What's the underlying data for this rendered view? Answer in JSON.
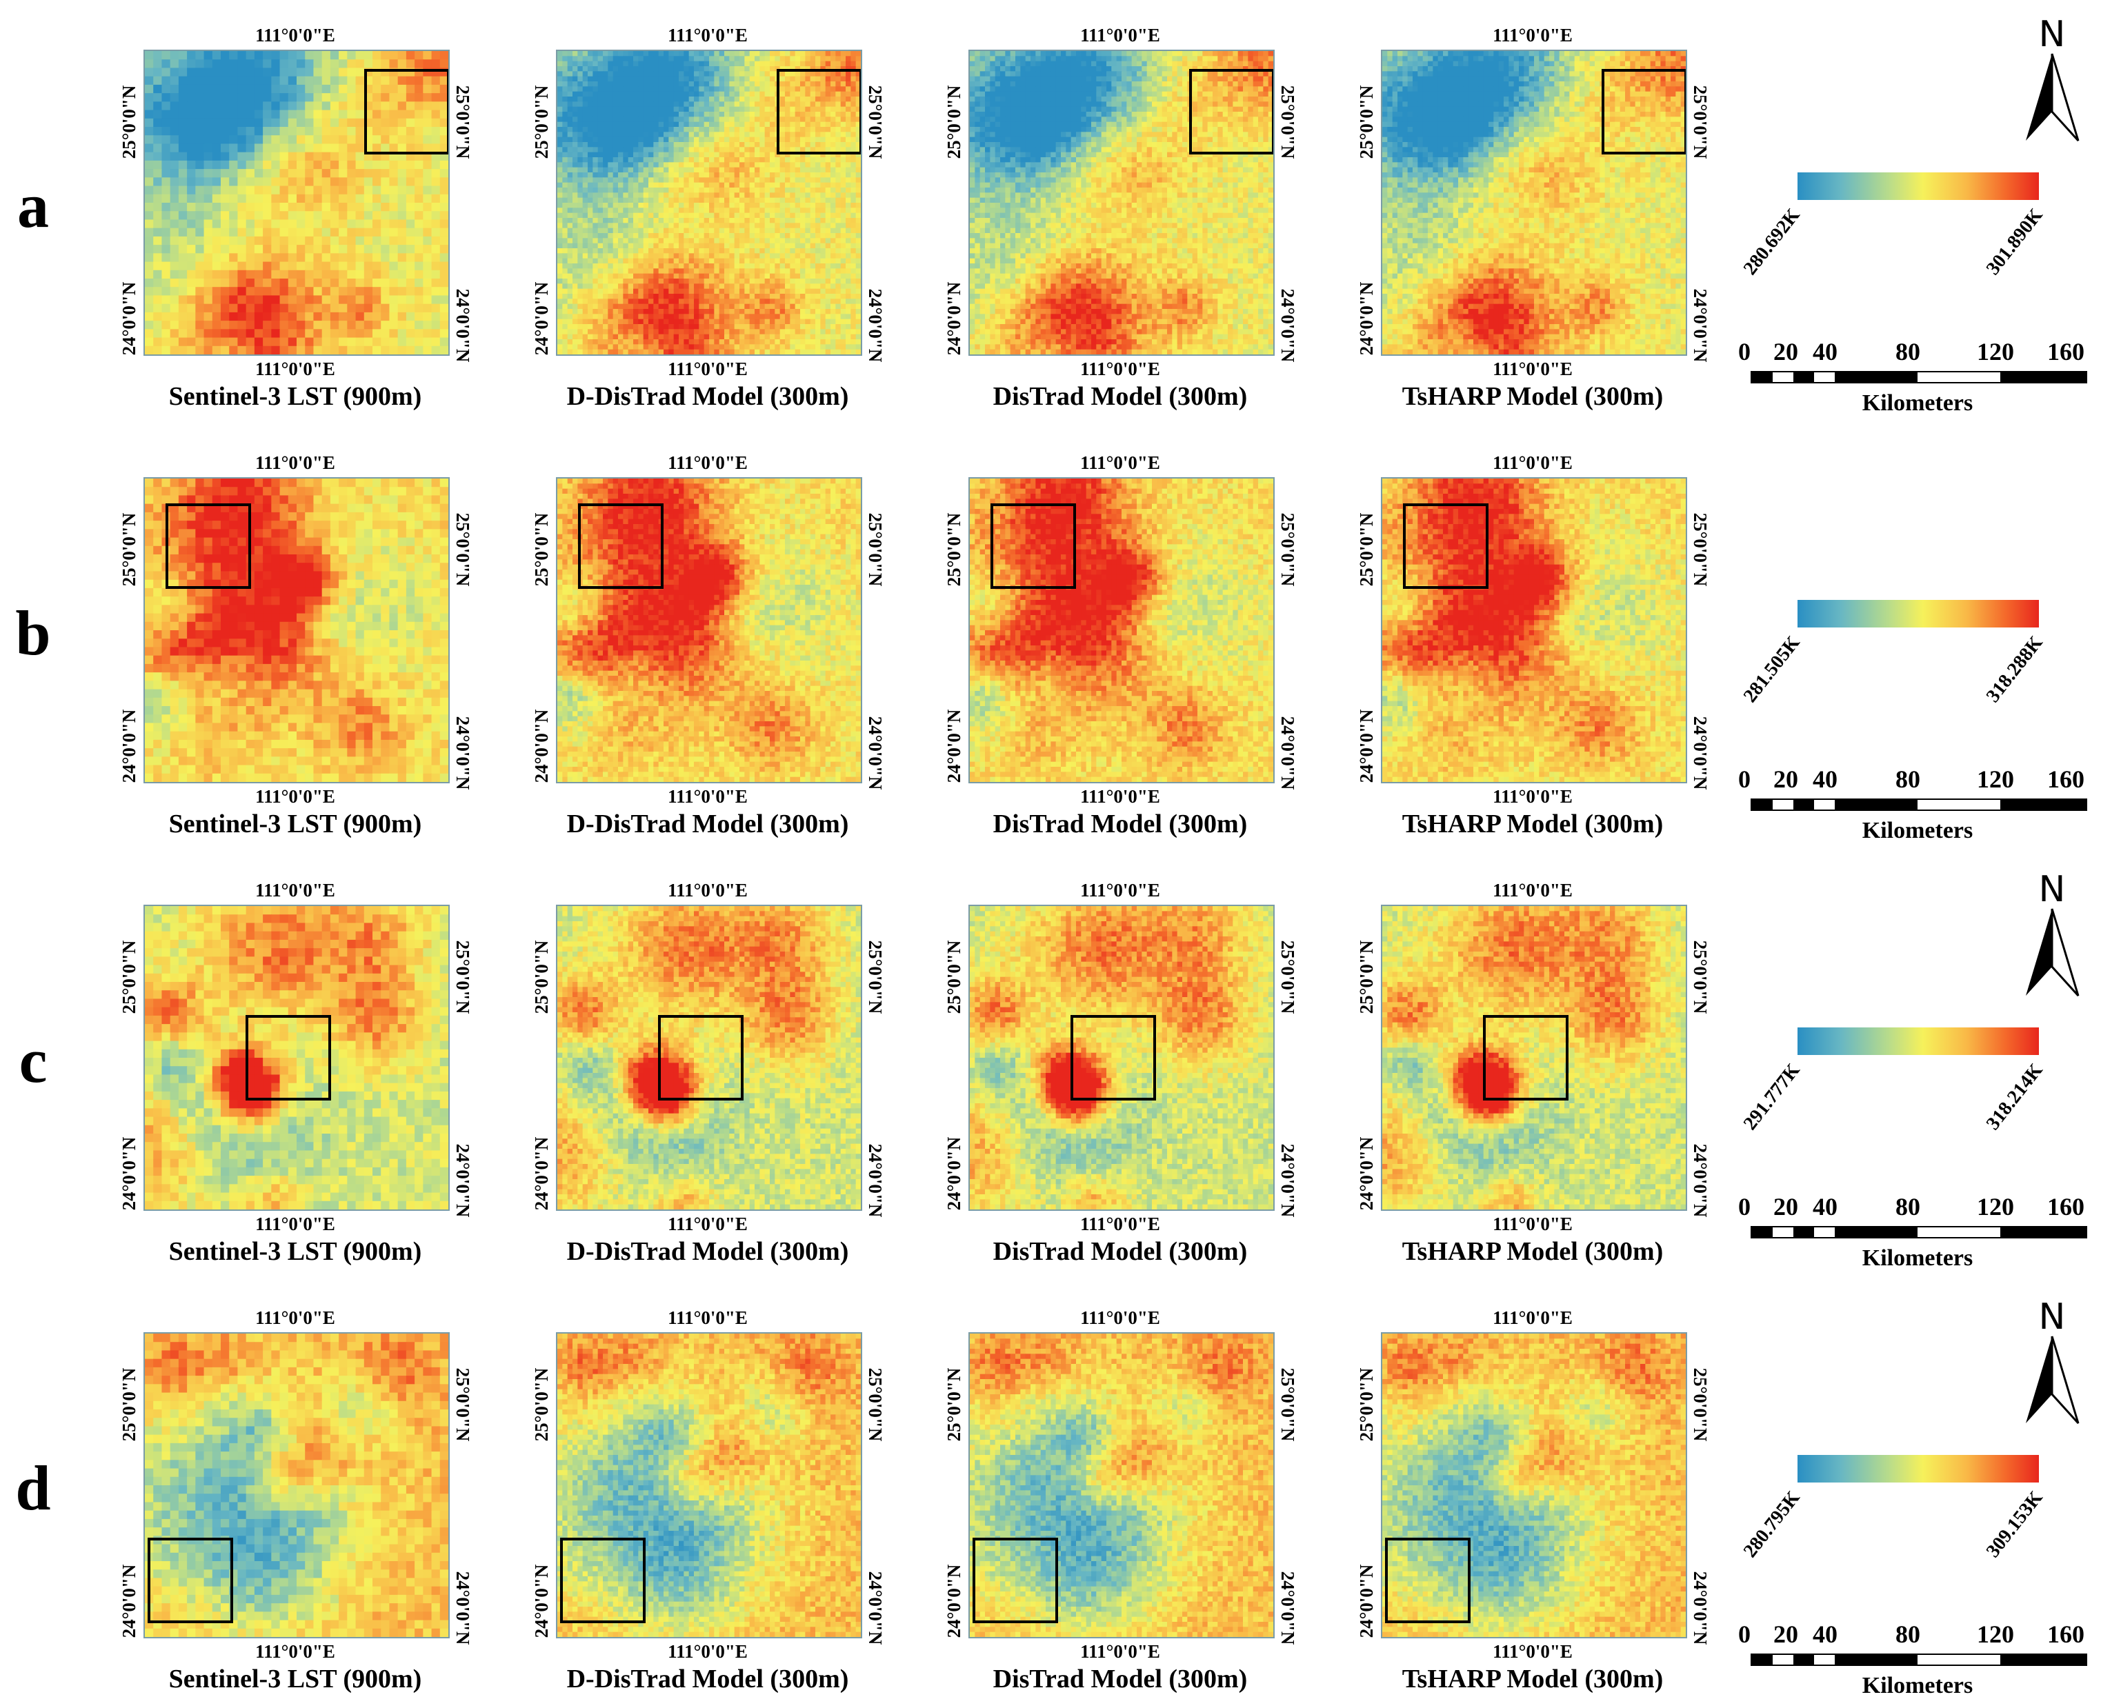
{
  "coordinates": {
    "lon_label": "111°0'0\"E",
    "lat_north_label": "25°0'0\"N",
    "lat_south_label": "24°0'0\"N"
  },
  "columns": [
    {
      "title": "Sentinel-3 LST (900m)",
      "resolution": 900
    },
    {
      "title": "D-DisTrad Model (300m)",
      "resolution": 300
    },
    {
      "title": "DisTrad Model (300m)",
      "resolution": 300
    },
    {
      "title": "TsHARP Model (300m)",
      "resolution": 300
    }
  ],
  "rows": [
    {
      "letter": "a",
      "min_label": "280.692K",
      "max_label": "301.890K",
      "min_k": 280.692,
      "max_k": 301.89,
      "inset": "top-right",
      "north_arrow": true,
      "seed": 11,
      "warm_bias": 0.0
    },
    {
      "letter": "b",
      "min_label": "281.505K",
      "max_label": "318.288K",
      "min_k": 281.505,
      "max_k": 318.288,
      "inset": "top-left",
      "north_arrow": false,
      "seed": 23,
      "warm_bias": 0.05
    },
    {
      "letter": "c",
      "min_label": "291.777K",
      "max_label": "318.214K",
      "min_k": 291.777,
      "max_k": 318.214,
      "inset": "center",
      "north_arrow": true,
      "seed": 37,
      "warm_bias": -0.08
    },
    {
      "letter": "d",
      "min_label": "280.795K",
      "max_label": "309.153K",
      "min_k": 280.795,
      "max_k": 309.153,
      "inset": "bottom-left",
      "north_arrow": true,
      "seed": 53,
      "warm_bias": 0.15
    }
  ],
  "scale_bar": {
    "ticks": [
      "0",
      "20",
      "40",
      "80",
      "120",
      "160"
    ],
    "unit_label": "Kilometers"
  },
  "north_label": "N",
  "colors": {
    "cold": "#2a8fc3",
    "mid": "#f6f15b",
    "hot": "#e8261d",
    "frame": "#7a9ca6"
  }
}
